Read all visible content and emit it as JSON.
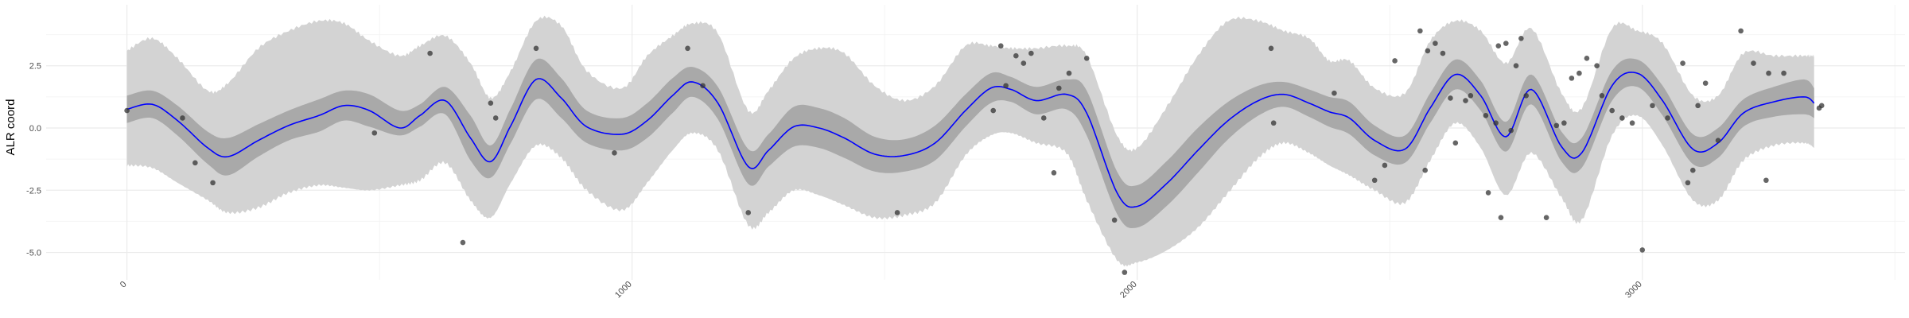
{
  "chart_data": {
    "type": "line",
    "title": "",
    "xlabel": "",
    "ylabel": "ALR coord",
    "xlim": [
      -160,
      3520
    ],
    "ylim": [
      -6.1,
      4.95
    ],
    "x_ticks": [
      0,
      1000,
      2000,
      3000
    ],
    "x_tick_labels": [
      "0",
      "1000",
      "2000",
      "3000"
    ],
    "y_ticks": [
      -5.0,
      -2.5,
      0.0,
      2.5
    ],
    "y_tick_labels": [
      "-5.0",
      "-2.5",
      "0.0",
      "2.5"
    ],
    "grid": true,
    "legend": "none",
    "colors": {
      "line": "#0000ff",
      "outer_band": "#d3d3d3",
      "inner_band": "#a9a9a9",
      "points": "#333333",
      "grid_major": "#ebebeb",
      "grid_minor": "#f4f4f4",
      "tick_text": "#4d4d4d"
    },
    "curve": {
      "x": [
        0,
        50,
        100,
        160,
        200,
        260,
        320,
        380,
        430,
        480,
        540,
        580,
        630,
        680,
        720,
        760,
        810,
        860,
        910,
        980,
        1030,
        1080,
        1120,
        1170,
        1230,
        1270,
        1320,
        1370,
        1420,
        1480,
        1540,
        1600,
        1660,
        1710,
        1750,
        1800,
        1860,
        1900,
        1960,
        2000,
        2060,
        2120,
        2180,
        2240,
        2290,
        2340,
        2380,
        2420,
        2470,
        2530,
        2580,
        2630,
        2680,
        2730,
        2780,
        2840,
        2880,
        2940,
        2990,
        3040,
        3100,
        3150,
        3200,
        3260,
        3320,
        3340
      ],
      "y": [
        0.75,
        0.95,
        0.3,
        -0.8,
        -1.15,
        -0.5,
        0.1,
        0.5,
        0.9,
        0.7,
        0.0,
        0.5,
        1.1,
        -0.4,
        -1.35,
        0.1,
        1.95,
        1.2,
        0.05,
        -0.25,
        0.3,
        1.3,
        1.85,
        1.0,
        -1.55,
        -0.9,
        0.05,
        0.0,
        -0.4,
        -1.05,
        -1.1,
        -0.6,
        0.7,
        1.6,
        1.55,
        1.1,
        1.35,
        0.6,
        -2.6,
        -3.15,
        -2.2,
        -0.9,
        0.3,
        1.1,
        1.35,
        1.0,
        0.65,
        0.4,
        -0.5,
        -0.85,
        0.8,
        2.15,
        1.3,
        -0.35,
        1.55,
        -0.75,
        -1.0,
        1.7,
        2.2,
        1.1,
        -0.85,
        -0.6,
        0.6,
        1.05,
        1.25,
        1.0
      ],
      "inner_lo": [
        0.2,
        0.4,
        -0.3,
        -1.45,
        -1.9,
        -1.15,
        -0.5,
        -0.15,
        0.3,
        0.05,
        -0.3,
        0.05,
        0.55,
        -1.3,
        -2.0,
        -0.6,
        1.15,
        0.4,
        -0.6,
        -0.9,
        -0.4,
        0.6,
        1.25,
        0.35,
        -2.25,
        -1.55,
        -0.75,
        -0.8,
        -1.2,
        -1.75,
        -1.75,
        -1.3,
        0.05,
        1.0,
        1.05,
        0.55,
        0.75,
        -0.3,
        -3.45,
        -4.0,
        -3.1,
        -1.8,
        -0.45,
        0.5,
        0.85,
        0.45,
        0.05,
        -0.25,
        -1.1,
        -1.4,
        0.2,
        1.55,
        0.7,
        -0.95,
        0.95,
        -1.35,
        -1.6,
        1.1,
        1.65,
        0.5,
        -1.45,
        -1.2,
        0.05,
        0.45,
        0.55,
        0.4
      ],
      "inner_hi": [
        1.3,
        1.5,
        0.9,
        -0.15,
        -0.4,
        0.15,
        0.7,
        1.15,
        1.5,
        1.35,
        0.7,
        0.95,
        1.65,
        0.5,
        -0.7,
        0.8,
        2.75,
        2.0,
        0.7,
        0.4,
        1.0,
        2.0,
        2.45,
        1.65,
        -0.85,
        -0.25,
        0.85,
        0.8,
        0.4,
        -0.35,
        -0.45,
        0.1,
        1.35,
        2.2,
        2.05,
        1.65,
        1.95,
        1.5,
        -1.75,
        -2.3,
        -1.3,
        0.0,
        1.05,
        1.7,
        1.85,
        1.55,
        1.25,
        1.05,
        0.1,
        -0.3,
        1.4,
        2.75,
        1.9,
        0.25,
        2.15,
        -0.15,
        -0.4,
        2.3,
        2.75,
        1.7,
        -0.25,
        0.0,
        1.15,
        1.65,
        1.95,
        1.6
      ],
      "outer_lo": [
        -1.5,
        -1.6,
        -2.2,
        -2.9,
        -3.4,
        -3.2,
        -2.6,
        -2.3,
        -2.4,
        -2.5,
        -2.3,
        -2.1,
        -1.4,
        -2.9,
        -3.6,
        -2.2,
        -0.7,
        -1.2,
        -2.5,
        -3.3,
        -2.2,
        -0.9,
        -0.2,
        -0.9,
        -3.9,
        -3.4,
        -2.5,
        -2.7,
        -3.1,
        -3.6,
        -3.5,
        -3.0,
        -1.1,
        -0.3,
        -0.2,
        -0.6,
        -1.0,
        -2.9,
        -5.3,
        -5.4,
        -4.9,
        -4.0,
        -2.6,
        -1.2,
        -0.6,
        -1.0,
        -1.5,
        -1.9,
        -2.5,
        -3.0,
        -1.3,
        0.2,
        -0.8,
        -2.7,
        -1.0,
        -2.8,
        -3.7,
        -0.3,
        0.5,
        -0.7,
        -2.9,
        -2.9,
        -1.3,
        -0.7,
        -0.6,
        -0.8
      ],
      "outer_hi": [
        3.1,
        3.6,
        2.8,
        1.5,
        1.8,
        3.2,
        3.9,
        4.3,
        4.2,
        3.5,
        2.9,
        3.3,
        3.7,
        2.6,
        1.2,
        2.3,
        4.3,
        4.1,
        2.3,
        1.6,
        2.9,
        3.7,
        4.2,
        3.8,
        0.7,
        1.5,
        2.8,
        3.2,
        3.0,
        1.7,
        1.1,
        1.7,
        3.3,
        3.3,
        3.2,
        3.2,
        3.3,
        2.9,
        -0.3,
        -0.8,
        0.9,
        2.9,
        4.3,
        4.3,
        3.9,
        3.6,
        2.7,
        2.7,
        1.6,
        1.4,
        3.5,
        4.3,
        3.9,
        2.6,
        4.0,
        1.4,
        0.8,
        4.0,
        3.9,
        3.4,
        1.3,
        1.3,
        3.0,
        2.9,
        2.9,
        2.9
      ]
    },
    "points": {
      "x": [
        0,
        110,
        135,
        170,
        490,
        600,
        665,
        720,
        730,
        810,
        965,
        1110,
        1140,
        1230,
        1525,
        1715,
        1730,
        1740,
        1760,
        1775,
        1790,
        1815,
        1835,
        1845,
        1865,
        1900,
        1955,
        1975,
        2265,
        2270,
        2390,
        2470,
        2490,
        2510,
        2560,
        2570,
        2575,
        2590,
        2605,
        2620,
        2630,
        2650,
        2660,
        2690,
        2695,
        2710,
        2715,
        2720,
        2730,
        2740,
        2750,
        2760,
        2770,
        2810,
        2830,
        2845,
        2860,
        2875,
        2890,
        2910,
        2920,
        2940,
        2960,
        2980,
        3000,
        3020,
        3050,
        3080,
        3090,
        3100,
        3110,
        3125,
        3150,
        3195,
        3220,
        3245,
        3250,
        3280,
        3350,
        3355
      ],
      "y": [
        0.7,
        0.4,
        -1.4,
        -2.2,
        -0.2,
        3.0,
        -4.6,
        1.0,
        0.4,
        3.2,
        -1.0,
        3.2,
        1.7,
        -3.4,
        -3.4,
        0.7,
        3.3,
        1.7,
        2.9,
        2.6,
        3.0,
        0.4,
        -1.8,
        1.6,
        2.2,
        2.8,
        -3.7,
        -5.8,
        3.2,
        0.2,
        1.4,
        -2.1,
        -1.5,
        2.7,
        3.9,
        -1.7,
        3.1,
        3.4,
        3.0,
        1.2,
        -0.6,
        1.1,
        1.3,
        0.5,
        -2.6,
        0.2,
        3.3,
        -3.6,
        3.4,
        -0.1,
        2.5,
        3.6,
        1.3,
        -3.6,
        0.1,
        0.2,
        2.0,
        2.2,
        2.8,
        2.5,
        1.3,
        0.7,
        0.4,
        0.2,
        -4.9,
        0.9,
        0.4,
        2.6,
        -2.2,
        -1.7,
        0.9,
        1.8,
        -0.5,
        3.9,
        2.6,
        -2.1,
        2.2,
        2.2,
        0.8,
        0.9
      ]
    }
  }
}
